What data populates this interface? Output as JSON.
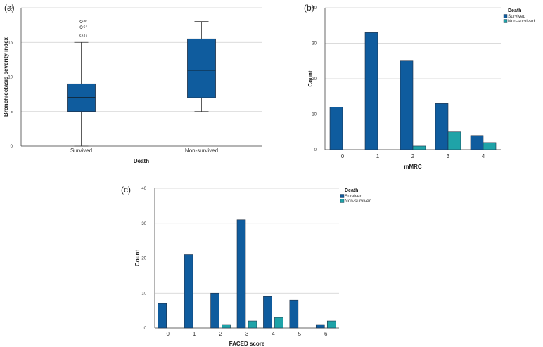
{
  "chart_data": [
    {
      "panel": "(a)",
      "type": "box",
      "xlabel": "Death",
      "ylabel": "Bronchiectasis severity index",
      "ylim": [
        0,
        20
      ],
      "yticks": [
        0,
        5,
        10,
        15,
        20
      ],
      "categories": [
        "Survived",
        "Non-survived"
      ],
      "boxes": [
        {
          "category": "Survived",
          "min": 0,
          "q1": 5,
          "median": 7,
          "q3": 9,
          "max": 15,
          "outliers": [
            {
              "value": 18,
              "label": "86"
            },
            {
              "value": 17.2,
              "label": "64"
            },
            {
              "value": 16,
              "label": "37"
            }
          ]
        },
        {
          "category": "Non-survived",
          "min": 5,
          "q1": 7,
          "median": 11,
          "q3": 15.5,
          "max": 18,
          "outliers": []
        }
      ],
      "color": "#0f5c9e"
    },
    {
      "panel": "(b)",
      "type": "bar",
      "xlabel": "mMRC",
      "ylabel": "Count",
      "ylim": [
        0,
        40
      ],
      "yticks": [
        0,
        10,
        20,
        30,
        40
      ],
      "categories": [
        "0",
        "1",
        "2",
        "3",
        "4"
      ],
      "legend_title": "Death",
      "series": [
        {
          "name": "Survived",
          "color": "#0f5c9e",
          "values": [
            12,
            33,
            25,
            13,
            4
          ]
        },
        {
          "name": "Non-survived",
          "color": "#1fa3a8",
          "values": [
            0,
            0,
            1,
            5,
            2
          ]
        }
      ]
    },
    {
      "panel": "(c)",
      "type": "bar",
      "xlabel": "FACED score",
      "ylabel": "Count",
      "ylim": [
        0,
        40
      ],
      "yticks": [
        0,
        10,
        20,
        30,
        40
      ],
      "categories": [
        "0",
        "1",
        "2",
        "3",
        "4",
        "5",
        "6"
      ],
      "legend_title": "Death",
      "series": [
        {
          "name": "Survived",
          "color": "#0f5c9e",
          "values": [
            7,
            21,
            10,
            31,
            9,
            8,
            1
          ]
        },
        {
          "name": "Non-survived",
          "color": "#1fa3a8",
          "values": [
            0,
            0,
            1,
            2,
            3,
            0,
            2
          ]
        }
      ]
    }
  ]
}
